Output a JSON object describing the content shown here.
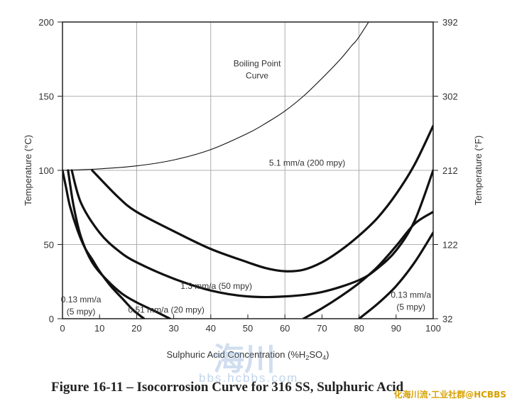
{
  "chart_data": {
    "type": "line",
    "xlabel": "Sulphuric Acid Concentration (%H",
    "xlabel_sub": "2",
    "xlabel_mid": "SO",
    "xlabel_sub2": "4",
    "xlabel_end": ")",
    "ylabel": "Temperature (°C)",
    "y2label": "Temperature (°F)",
    "xlim": [
      0,
      100
    ],
    "ylim": [
      0,
      200
    ],
    "x_ticks": [
      "0",
      "10",
      "20",
      "30",
      "40",
      "50",
      "60",
      "70",
      "80",
      "90",
      "100"
    ],
    "y_ticks": [
      "0",
      "50",
      "100",
      "150",
      "200"
    ],
    "y2_ticks": [
      "32",
      "122",
      "212",
      "302",
      "392"
    ],
    "grid": true,
    "series": [
      {
        "name": "Boiling Point Curve",
        "style": "thin",
        "x": [
          0,
          10,
          20,
          30,
          40,
          50,
          55,
          60,
          65,
          70,
          75,
          78,
          80,
          85,
          90,
          95,
          100
        ],
        "y": [
          100,
          101,
          103,
          107,
          114,
          125,
          132,
          140,
          150,
          162,
          175,
          184,
          190,
          210,
          232,
          258,
          290
        ]
      },
      {
        "name": "5.1 mm/a (200 mpy)",
        "style": "thick",
        "x": [
          8,
          15,
          20,
          30,
          40,
          50,
          55,
          60,
          65,
          70,
          75,
          80,
          85,
          90,
          95,
          100
        ],
        "y": [
          100,
          82,
          72,
          59,
          47,
          38,
          34,
          32,
          33,
          38,
          46,
          56,
          68,
          84,
          104,
          130
        ]
      },
      {
        "name": "1.3 mm/a (50 mpy)",
        "style": "thick",
        "x": [
          2.5,
          5,
          10,
          15,
          20,
          30,
          40,
          50,
          60,
          70,
          80,
          85,
          90,
          95,
          100
        ],
        "y": [
          100,
          78,
          58,
          46,
          38,
          27,
          19,
          15,
          15,
          18,
          26,
          34,
          46,
          66,
          100
        ]
      },
      {
        "name": "0.51 mm/a (20 mpy)",
        "style": "thick",
        "x": [
          1.5,
          3,
          5,
          8,
          12,
          16,
          20,
          25,
          29
        ],
        "y": [
          100,
          76,
          55,
          38,
          26,
          17,
          11,
          5,
          0
        ]
      },
      {
        "name": "0.13 mm/a (5 mpy)",
        "style": "thick",
        "x": [
          0,
          1,
          2,
          4,
          6,
          8,
          10,
          13,
          16,
          19,
          22
        ],
        "y": [
          100,
          88,
          76,
          60,
          48,
          40,
          32,
          22,
          14,
          6,
          0
        ]
      },
      {
        "name": "0.13 mm/a (5 mpy) high",
        "style": "thick",
        "x": [
          65,
          70,
          75,
          80,
          85,
          90,
          95,
          100
        ],
        "y": [
          0,
          7,
          15,
          24,
          35,
          49,
          64,
          72
        ]
      },
      {
        "name": "0.13 mm/a (5 mpy) right",
        "style": "thick",
        "x": [
          80,
          85,
          90,
          95,
          100
        ],
        "y": [
          0,
          10,
          22,
          38,
          58
        ]
      }
    ],
    "annotations": [
      {
        "lines": [
          "Boiling Point",
          "Curve"
        ],
        "x": 52.5,
        "y": 170
      },
      {
        "lines": [
          "5.1 mm/a (200 mpy)"
        ],
        "x": 66,
        "y": 103
      },
      {
        "lines": [
          "1.3 mm/a (50 mpy)"
        ],
        "x": 41.5,
        "y": 20
      },
      {
        "lines": [
          "0.51 mm/a (20 mpy)"
        ],
        "x": 28,
        "y": 4
      },
      {
        "lines": [
          "0.13 mm/a",
          "(5 mpy)"
        ],
        "x": 5,
        "y": 11
      },
      {
        "lines": [
          "0.13 mm/a",
          "(5 mpy)"
        ],
        "x": 94,
        "y": 14
      }
    ]
  },
  "caption": "Figure 16-11 – Isocorrosion Curve for 316 SS, Sulphuric Acid",
  "watermark_cn": "海川",
  "watermark_url": "bbs.hcbbs.com",
  "corner_tag": "化海川流·工业社群@HCBBS"
}
